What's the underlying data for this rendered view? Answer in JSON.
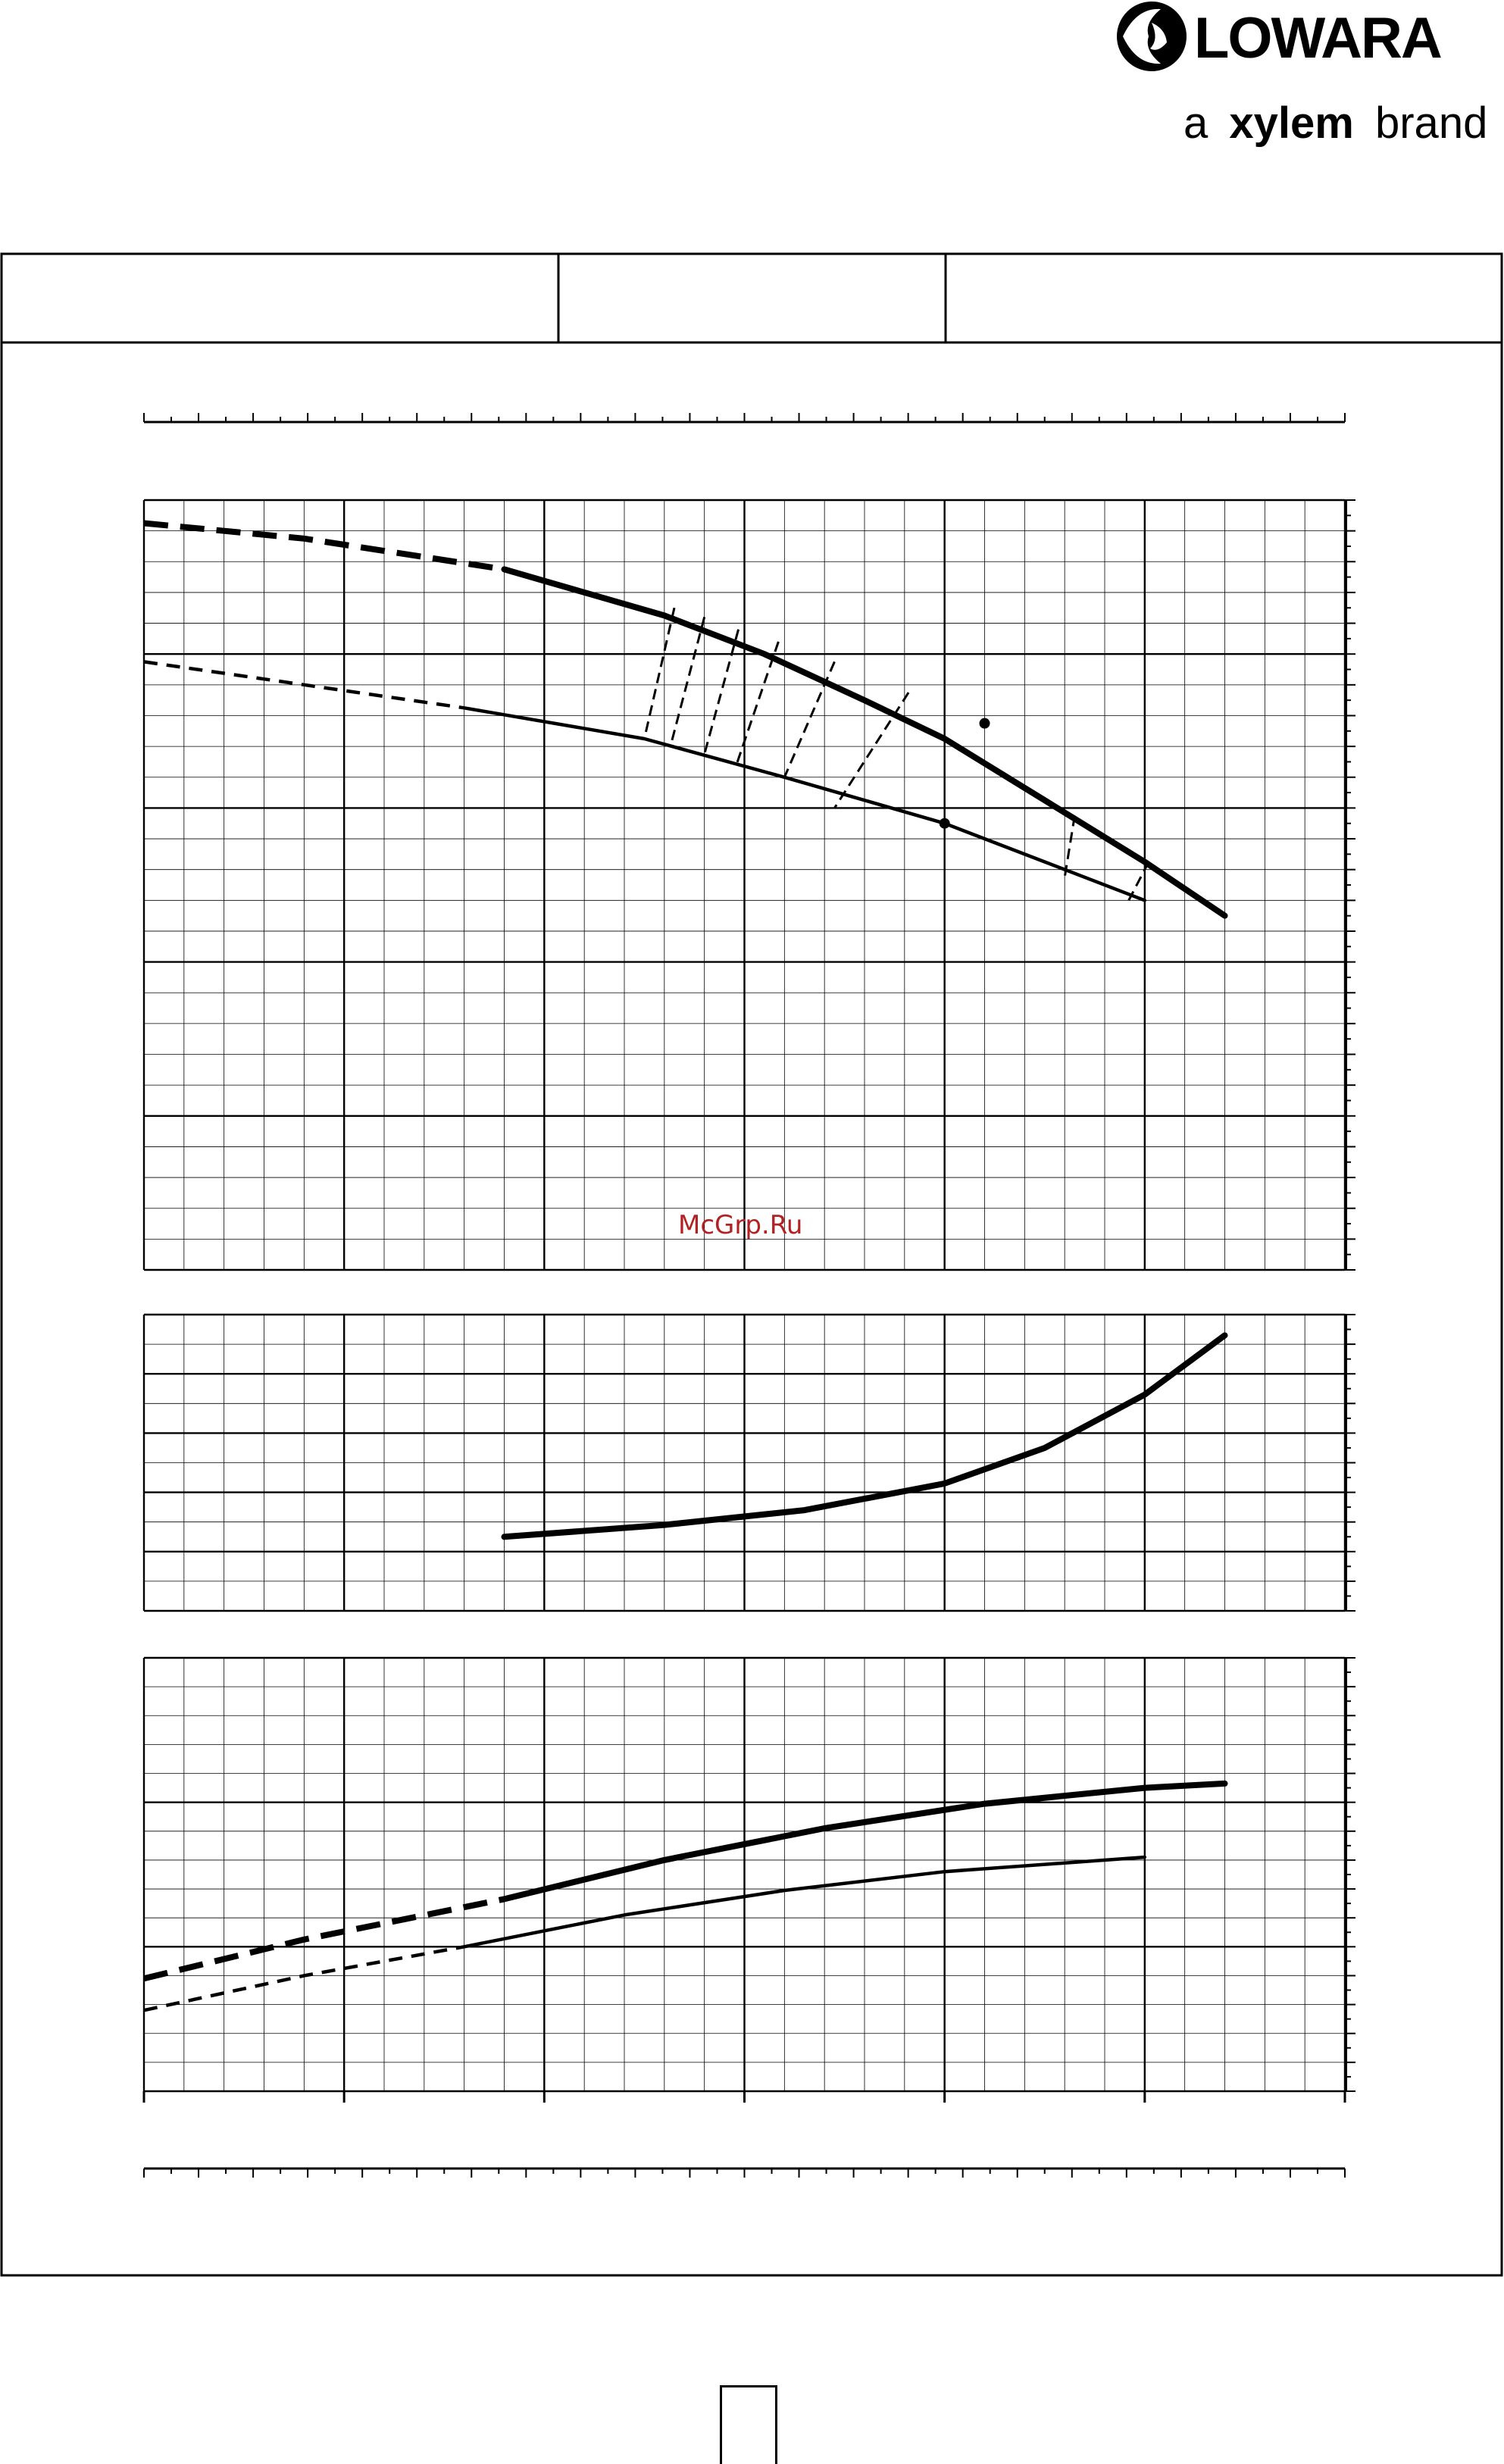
{
  "brand": {
    "logo_text": "LOWARA",
    "tagline_a": "a",
    "tagline_xylem": "xylem",
    "tagline_brand": "brand"
  },
  "header_table": {
    "cells": [
      "",
      "",
      ""
    ]
  },
  "watermark": "McGrp.Ru",
  "page_number": "",
  "colors": {
    "ink": "#000000",
    "grid": "#000000",
    "watermark": "#b22222"
  },
  "chart_data": [
    {
      "type": "line",
      "panel": "head",
      "x_range": [
        0,
        6
      ],
      "y_range": [
        0,
        5
      ],
      "grid": true,
      "series": [
        {
          "style": "thick",
          "x": [
            1.8,
            2.6,
            3.1,
            3.6,
            4.0,
            4.5,
            5.0,
            5.4
          ],
          "y": [
            4.55,
            4.25,
            4.0,
            3.7,
            3.45,
            3.05,
            2.65,
            2.3
          ],
          "extension": {
            "x": [
              0,
              0.8,
              1.8
            ],
            "y": [
              4.85,
              4.75,
              4.55
            ]
          }
        },
        {
          "style": "thin",
          "x": [
            1.6,
            2.5,
            3.2,
            3.6,
            4.0,
            4.5,
            5.0
          ],
          "y": [
            3.65,
            3.45,
            3.2,
            3.05,
            2.9,
            2.65,
            2.4
          ],
          "extension": {
            "x": [
              0,
              0.8,
              1.6
            ],
            "y": [
              3.95,
              3.8,
              3.65
            ]
          }
        }
      ],
      "iso_lines": [
        {
          "x": [
            2.65,
            2.5
          ],
          "y": [
            4.3,
            3.45
          ]
        },
        {
          "x": [
            2.8,
            2.63
          ],
          "y": [
            4.24,
            3.4
          ]
        },
        {
          "x": [
            2.97,
            2.8
          ],
          "y": [
            4.16,
            3.35
          ]
        },
        {
          "x": [
            3.17,
            2.96
          ],
          "y": [
            4.08,
            3.28
          ]
        },
        {
          "x": [
            3.45,
            3.2
          ],
          "y": [
            3.95,
            3.2
          ]
        },
        {
          "x": [
            3.82,
            3.45
          ],
          "y": [
            3.75,
            3.0
          ]
        },
        {
          "x": [
            4.65,
            4.6
          ],
          "y": [
            2.95,
            2.55
          ]
        },
        {
          "x": [
            5.02,
            4.92
          ],
          "y": [
            2.65,
            2.4
          ]
        }
      ],
      "markers": [
        {
          "x": 4.2,
          "y": 3.55
        },
        {
          "x": 4.0,
          "y": 2.9
        }
      ]
    },
    {
      "type": "line",
      "panel": "npsh",
      "x_range": [
        0,
        6
      ],
      "y_range": [
        0,
        5
      ],
      "grid": true,
      "series": [
        {
          "style": "thick",
          "x": [
            1.8,
            2.6,
            3.3,
            4.0,
            4.5,
            5.0,
            5.4
          ],
          "y": [
            1.25,
            1.45,
            1.7,
            2.15,
            2.75,
            3.65,
            4.65
          ]
        }
      ]
    },
    {
      "type": "line",
      "panel": "power",
      "x_range": [
        0,
        6
      ],
      "y_range": [
        0,
        3
      ],
      "grid": true,
      "series": [
        {
          "style": "thick",
          "x": [
            1.8,
            2.6,
            3.4,
            4.2,
            5.0,
            5.4
          ],
          "y": [
            1.33,
            1.6,
            1.82,
            1.99,
            2.1,
            2.13
          ],
          "extension": {
            "x": [
              0,
              0.8,
              1.8
            ],
            "y": [
              0.78,
              1.05,
              1.33
            ]
          }
        },
        {
          "style": "thin",
          "x": [
            1.6,
            2.4,
            3.2,
            4.0,
            5.0
          ],
          "y": [
            1.0,
            1.22,
            1.39,
            1.52,
            1.62
          ],
          "extension": {
            "x": [
              0,
              0.8,
              1.6
            ],
            "y": [
              0.56,
              0.8,
              1.0
            ]
          }
        }
      ]
    }
  ]
}
